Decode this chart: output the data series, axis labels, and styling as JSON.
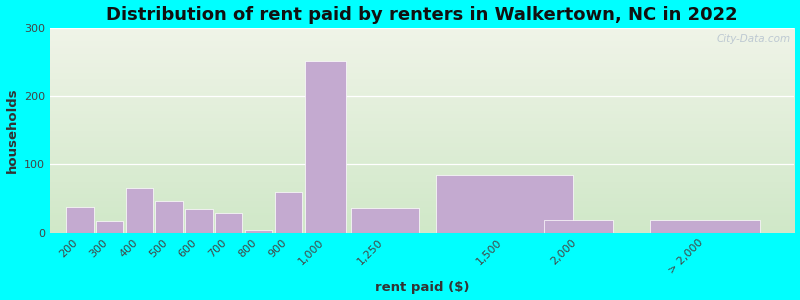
{
  "title": "Distribution of rent paid by renters in Walkertown, NC in 2022",
  "xlabel": "rent paid ($)",
  "ylabel": "households",
  "bar_color": "#c4aad0",
  "background_outer": "#00ffff",
  "background_top": "#d0e8c8",
  "background_bottom": "#f0f4e8",
  "categories": [
    "200",
    "300",
    "400",
    "500",
    "600",
    "700",
    "800",
    "900",
    "1,000",
    "1,250",
    "1,500",
    "2,000",
    "> 2,000"
  ],
  "left_edges": [
    150,
    250,
    350,
    450,
    550,
    650,
    750,
    850,
    950,
    1100,
    1375,
    1750,
    2100
  ],
  "widths": [
    100,
    100,
    100,
    100,
    100,
    100,
    100,
    100,
    150,
    250,
    500,
    250,
    400
  ],
  "values": [
    38,
    17,
    65,
    47,
    35,
    28,
    4,
    60,
    252,
    36,
    85,
    18,
    18
  ],
  "tick_positions": [
    200,
    300,
    400,
    500,
    600,
    700,
    800,
    900,
    1000,
    1250,
    1500,
    2000,
    2300
  ],
  "ylim": [
    0,
    300
  ],
  "yticks": [
    0,
    100,
    200,
    300
  ],
  "title_fontsize": 13,
  "label_fontsize": 9.5,
  "tick_fontsize": 8
}
